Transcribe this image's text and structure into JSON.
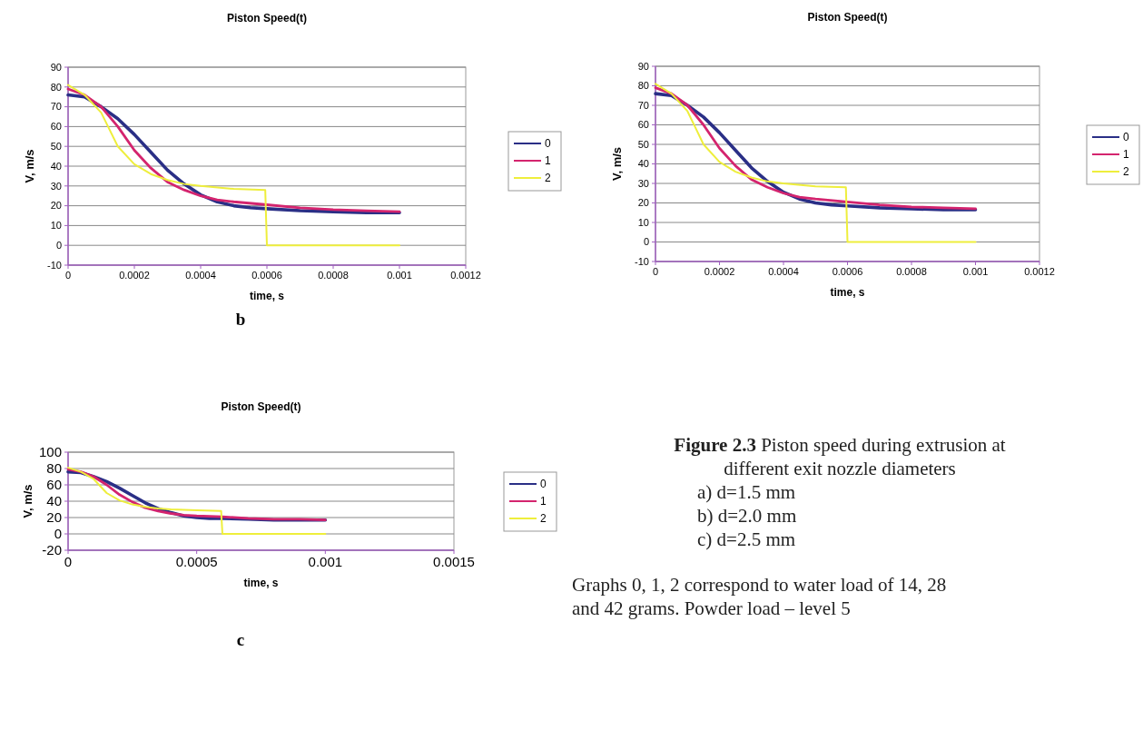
{
  "chart_data": [
    {
      "type": "line",
      "title": "Piston Speed(t)",
      "xlabel": "time, s",
      "ylabel": "V, m/s",
      "annotations": [
        "b"
      ],
      "xlim": [
        0,
        0.0012
      ],
      "xticks": [
        0,
        0.0002,
        0.0004,
        0.0006,
        0.0008,
        0.001,
        0.0012
      ],
      "ylim": [
        -10,
        90
      ],
      "yticks": [
        -10,
        0,
        10,
        20,
        30,
        40,
        50,
        60,
        70,
        80,
        90
      ],
      "grid": "y",
      "legend": "right",
      "series": [
        {
          "name": "0",
          "color": "#2a2f86",
          "x": [
            0,
            5e-05,
            0.0001,
            0.00015,
            0.0002,
            0.00025,
            0.0003,
            0.00035,
            0.0004,
            0.00045,
            0.0005,
            0.00055,
            0.0006,
            0.0007,
            0.0008,
            0.0009,
            0.001
          ],
          "values": [
            76,
            75,
            70,
            64,
            56,
            47,
            38,
            31,
            25.5,
            22,
            20,
            19,
            18.5,
            17.5,
            17,
            16.5,
            16.5
          ]
        },
        {
          "name": "1",
          "color": "#d4246e",
          "x": [
            0,
            5e-05,
            0.0001,
            0.00015,
            0.0002,
            0.00025,
            0.0003,
            0.00035,
            0.0004,
            0.00045,
            0.0005,
            0.0006,
            0.0007,
            0.0008,
            0.0009,
            0.001
          ],
          "values": [
            79,
            76,
            70,
            60,
            48,
            39,
            32,
            28,
            25,
            23,
            22,
            20.5,
            19,
            18,
            17.5,
            17
          ]
        },
        {
          "name": "2",
          "color": "#eeee3c",
          "x": [
            0,
            5e-05,
            0.0001,
            0.00015,
            0.0002,
            0.00025,
            0.0003,
            0.00035,
            0.0004,
            0.0005,
            0.000595,
            0.0006,
            0.001
          ],
          "values": [
            81,
            76,
            67,
            50,
            41,
            36,
            33,
            31,
            30,
            28.5,
            28,
            0,
            0
          ]
        }
      ]
    },
    {
      "type": "line",
      "title": "Piston Speed(t)",
      "xlabel": "time, s",
      "ylabel": "V, m/s",
      "xlim": [
        0,
        0.0012
      ],
      "xticks": [
        0,
        0.0002,
        0.0004,
        0.0006,
        0.0008,
        0.001,
        0.0012
      ],
      "ylim": [
        -10,
        90
      ],
      "yticks": [
        -10,
        0,
        10,
        20,
        30,
        40,
        50,
        60,
        70,
        80,
        90
      ],
      "grid": "y",
      "legend": "right",
      "series": [
        {
          "name": "0",
          "color": "#2a2f86",
          "x": [
            0,
            5e-05,
            0.0001,
            0.00015,
            0.0002,
            0.00025,
            0.0003,
            0.00035,
            0.0004,
            0.00045,
            0.0005,
            0.00055,
            0.0006,
            0.0007,
            0.0008,
            0.0009,
            0.001
          ],
          "values": [
            76,
            75,
            70,
            64,
            56,
            47,
            38,
            31,
            25.5,
            22,
            20,
            19,
            18.5,
            17.5,
            17,
            16.5,
            16.5
          ]
        },
        {
          "name": "1",
          "color": "#d4246e",
          "x": [
            0,
            5e-05,
            0.0001,
            0.00015,
            0.0002,
            0.00025,
            0.0003,
            0.00035,
            0.0004,
            0.00045,
            0.0005,
            0.0006,
            0.0007,
            0.0008,
            0.0009,
            0.001
          ],
          "values": [
            79,
            76,
            70,
            60,
            48,
            39,
            32,
            28,
            25,
            23,
            22,
            20.5,
            19,
            18,
            17.5,
            17
          ]
        },
        {
          "name": "2",
          "color": "#eeee3c",
          "x": [
            0,
            5e-05,
            0.0001,
            0.00015,
            0.0002,
            0.00025,
            0.0003,
            0.00035,
            0.0004,
            0.0005,
            0.000595,
            0.0006,
            0.001
          ],
          "values": [
            81,
            76,
            67,
            50,
            41,
            36,
            33,
            31,
            30,
            28.5,
            28,
            0,
            0
          ]
        }
      ]
    },
    {
      "type": "line",
      "title": "Piston Speed(t)",
      "xlabel": "time, s",
      "ylabel": "V, m/s",
      "annotations": [
        "c"
      ],
      "xlim": [
        0,
        0.0015
      ],
      "xticks": [
        0,
        0.0005,
        0.001,
        0.0015
      ],
      "ylim": [
        -20,
        100
      ],
      "yticks": [
        -20,
        0,
        20,
        40,
        60,
        80,
        100
      ],
      "grid": "y",
      "legend": "right",
      "series": [
        {
          "name": "0",
          "color": "#2a2f86",
          "x": [
            0,
            5e-05,
            0.0001,
            0.00015,
            0.0002,
            0.00025,
            0.0003,
            0.00035,
            0.0004,
            0.00045,
            0.0005,
            0.00055,
            0.0006,
            0.0007,
            0.0008,
            0.0009,
            0.001
          ],
          "values": [
            76,
            75,
            70,
            64,
            56,
            47,
            38,
            31,
            26,
            22,
            20,
            19,
            19,
            18,
            17,
            17,
            17
          ]
        },
        {
          "name": "1",
          "color": "#d4246e",
          "x": [
            0,
            5e-05,
            0.0001,
            0.00015,
            0.0002,
            0.00025,
            0.0003,
            0.00035,
            0.0004,
            0.00045,
            0.0005,
            0.0006,
            0.0007,
            0.0008,
            0.0009,
            0.001
          ],
          "values": [
            79,
            76,
            70,
            60,
            48,
            39,
            32,
            28,
            25,
            23,
            22,
            21,
            19,
            18,
            18,
            17
          ]
        },
        {
          "name": "2",
          "color": "#eeee3c",
          "x": [
            0,
            5e-05,
            0.0001,
            0.00015,
            0.0002,
            0.00025,
            0.0003,
            0.00035,
            0.0004,
            0.0005,
            0.000595,
            0.0006,
            0.001
          ],
          "values": [
            81,
            76,
            67,
            50,
            41,
            36,
            33,
            31,
            30,
            29,
            28,
            0,
            0
          ]
        }
      ]
    },
    {
      "type": "other",
      "title": "Figure 2.3",
      "subtitle": "Piston speed during extrusion at different exit nozzle diameters",
      "annotations": [
        "a) d=1.5 mm",
        "b) d=2.0 mm",
        "c) d=2.5 mm",
        "Graphs 0, 1, 2 correspond to water load of 14, 28 and 42 grams. Powder load – level 5"
      ]
    }
  ]
}
